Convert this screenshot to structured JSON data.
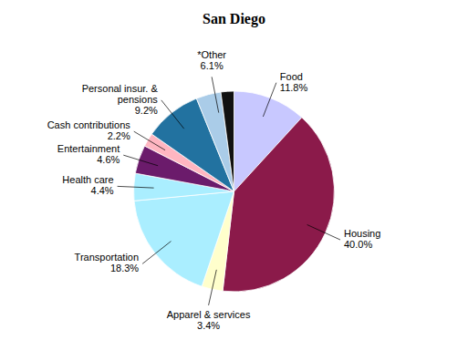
{
  "chart_data": {
    "type": "pie",
    "title": "San Diego",
    "values": [
      11.8,
      40.0,
      3.4,
      18.3,
      4.4,
      4.6,
      2.2,
      9.2,
      4.0,
      2.1
    ],
    "colors": [
      "#c8c8ff",
      "#8B1A4A",
      "#FFFFCC",
      "#AAEEFF",
      "#AAEEFF",
      "#6B1B6B",
      "#FFB6C1",
      "#2272A0",
      "#AACCE8",
      "#111111"
    ],
    "annotations": [
      "Food\n11.8%",
      "Housing\n40.0%",
      "Apparel & services\n3.4%",
      "Transportation\n18.3%",
      "Health care\n4.4%",
      "Entertainment\n4.6%",
      "Cash contributions\n2.2%",
      "Personal insur. &\npensions\n9.2%",
      "*Other\n6.1%"
    ]
  }
}
